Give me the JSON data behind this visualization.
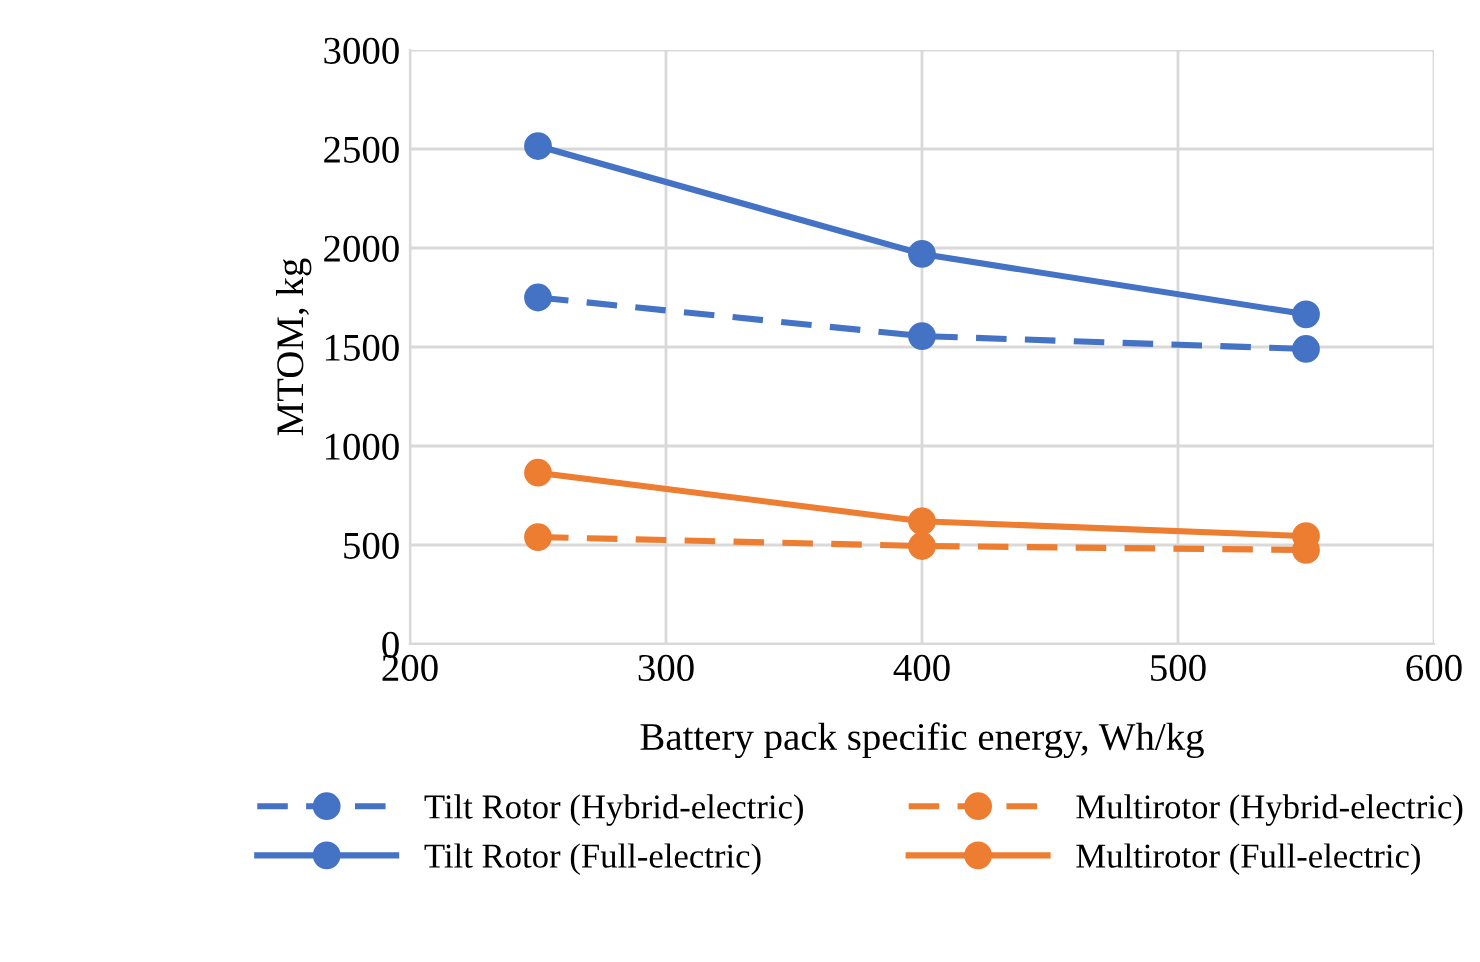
{
  "chart_data": {
    "type": "line",
    "xlabel": "Battery pack specific energy, Wh/kg",
    "ylabel": "MTOM, kg",
    "x": [
      250,
      400,
      550
    ],
    "series": [
      {
        "name": "Tilt Rotor (Hybrid-electric)",
        "color": "#4472c4",
        "line_style": "dashed",
        "values": [
          1750,
          1555,
          1490
        ]
      },
      {
        "name": "Tilt Rotor (Full-electric)",
        "color": "#4472c4",
        "line_style": "solid",
        "values": [
          2515,
          1970,
          1665
        ]
      },
      {
        "name": "Multirotor (Hybrid-electric)",
        "color": "#ed7d31",
        "line_style": "dashed",
        "values": [
          540,
          495,
          475
        ]
      },
      {
        "name": "Multirotor (Full-electric)",
        "color": "#ed7d31",
        "line_style": "solid",
        "values": [
          865,
          620,
          545
        ]
      }
    ],
    "xlim": [
      200,
      600
    ],
    "xticks": [
      200,
      300,
      400,
      500,
      600
    ],
    "ylim": [
      0,
      3000
    ],
    "yticks": [
      0,
      500,
      1000,
      1500,
      2000,
      2500,
      3000
    ],
    "grid": true,
    "legend": "bottom",
    "marker": "circle"
  }
}
